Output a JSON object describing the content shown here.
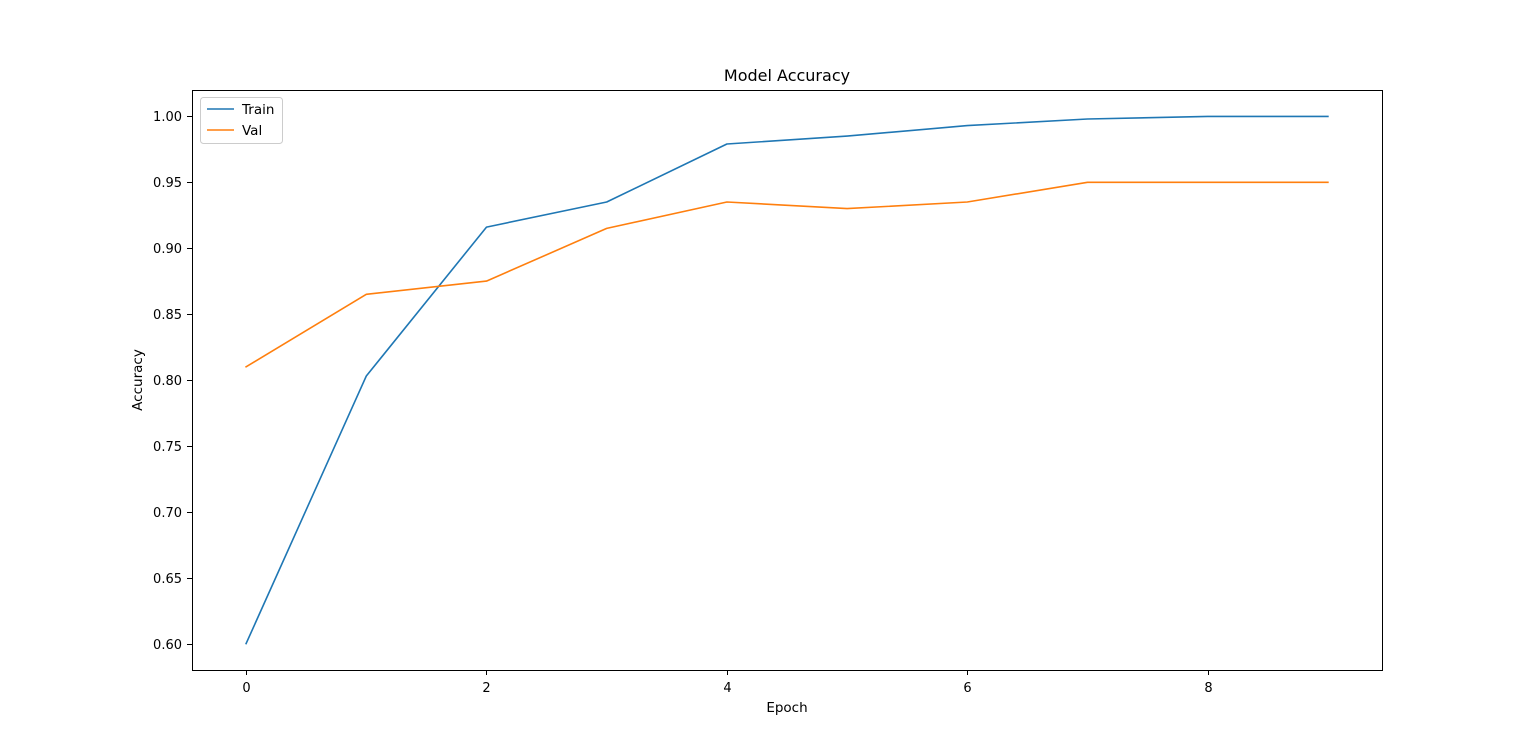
{
  "chart_data": {
    "type": "line",
    "title": "Model Accuracy",
    "xlabel": "Epoch",
    "ylabel": "Accuracy",
    "x": [
      0,
      1,
      2,
      3,
      4,
      5,
      6,
      7,
      8,
      9
    ],
    "xlim": [
      -0.45,
      9.45
    ],
    "ylim": [
      0.58,
      1.02
    ],
    "xticks": [
      0,
      2,
      4,
      6,
      8
    ],
    "xtick_labels": [
      "0",
      "2",
      "4",
      "6",
      "8"
    ],
    "yticks": [
      0.6,
      0.65,
      0.7,
      0.75,
      0.8,
      0.85,
      0.9,
      0.95,
      1.0
    ],
    "ytick_labels": [
      "0.60",
      "0.65",
      "0.70",
      "0.75",
      "0.80",
      "0.85",
      "0.90",
      "0.95",
      "1.00"
    ],
    "grid": false,
    "legend_position": "upper-left",
    "series": [
      {
        "name": "Train",
        "color": "#1f77b4",
        "values": [
          0.6,
          0.803,
          0.916,
          0.935,
          0.979,
          0.985,
          0.993,
          0.998,
          1.0,
          1.0
        ]
      },
      {
        "name": "Val",
        "color": "#ff7f0e",
        "values": [
          0.81,
          0.865,
          0.875,
          0.915,
          0.935,
          0.93,
          0.935,
          0.95,
          0.95,
          0.95
        ]
      }
    ]
  }
}
